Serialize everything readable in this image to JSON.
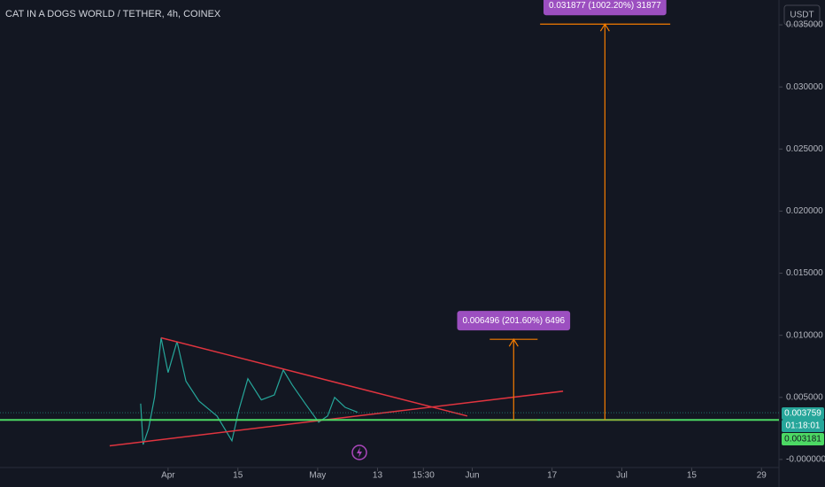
{
  "chart_data": {
    "type": "line",
    "title": "CAT IN A DOGS WORLD / TETHER, 4h, COINEX",
    "currency": "USDT",
    "x": [
      -5.5,
      -5.0,
      -3.9,
      -2.7,
      -1.4,
      0,
      1.8,
      3.6,
      6.2,
      9.8,
      12.8,
      14.2,
      16.0,
      18.7,
      21.3,
      23.1,
      24.9,
      27.5,
      30.2,
      32.0,
      33.4,
      35.5,
      38.0
    ],
    "series": [
      {
        "color": "#26a69a",
        "values": [
          0.0045,
          0.0012,
          0.0025,
          0.005,
          0.0098,
          0.007,
          0.0095,
          0.0063,
          0.0047,
          0.0035,
          0.0015,
          0.004,
          0.0065,
          0.0048,
          0.0052,
          0.0072,
          0.006,
          0.0045,
          0.003,
          0.0035,
          0.005,
          0.0042,
          0.0038
        ]
      }
    ],
    "xlim": [
      -33.7,
      122.5
    ],
    "xticks": [
      {
        "value": 0,
        "label": "Apr"
      },
      {
        "value": 14,
        "label": "15"
      },
      {
        "value": 30,
        "label": "May"
      },
      {
        "value": 42,
        "label": "13"
      },
      {
        "value": 51.2,
        "label": "15:30"
      },
      {
        "value": 61,
        "label": "Jun"
      },
      {
        "value": 77,
        "label": "17"
      },
      {
        "value": 91,
        "label": "Jul"
      },
      {
        "value": 105,
        "label": "15"
      },
      {
        "value": 119,
        "label": "29"
      }
    ],
    "ylim": [
      -0.00065,
      0.037
    ],
    "yticks": [
      {
        "value": 0,
        "label": "-0.000000"
      },
      {
        "value": 0.005,
        "label": "0.005000"
      },
      {
        "value": 0.01,
        "label": "0.010000"
      },
      {
        "value": 0.015,
        "label": "0.015000"
      },
      {
        "value": 0.02,
        "label": "0.020000"
      },
      {
        "value": 0.025,
        "label": "0.025000"
      },
      {
        "value": 0.03,
        "label": "0.030000"
      },
      {
        "value": 0.035,
        "label": "0.035000"
      }
    ],
    "grid": false,
    "trend_lines": [
      {
        "color": "#e0343f",
        "x": [
          -1.4,
          60.0
        ],
        "values": [
          0.0098,
          0.0035
        ]
      },
      {
        "color": "#e0343f",
        "x": [
          -11.7,
          79.2
        ],
        "values": [
          0.0011,
          0.0055
        ]
      }
    ],
    "last_price": 0.003759,
    "countdown": "01:18:01",
    "support": {
      "value": 0.003181,
      "color": "#4cd964"
    },
    "measures": [
      {
        "x": 69.3,
        "x_range": [
          64.5,
          74.1
        ],
        "change": 0.006496,
        "label": "0.006496 (201.60%) 6496"
      },
      {
        "x": 87.6,
        "x_range": [
          74.6,
          100.7
        ],
        "change": 0.031877,
        "label": "0.031877 (1002.20%) 31877"
      }
    ]
  }
}
